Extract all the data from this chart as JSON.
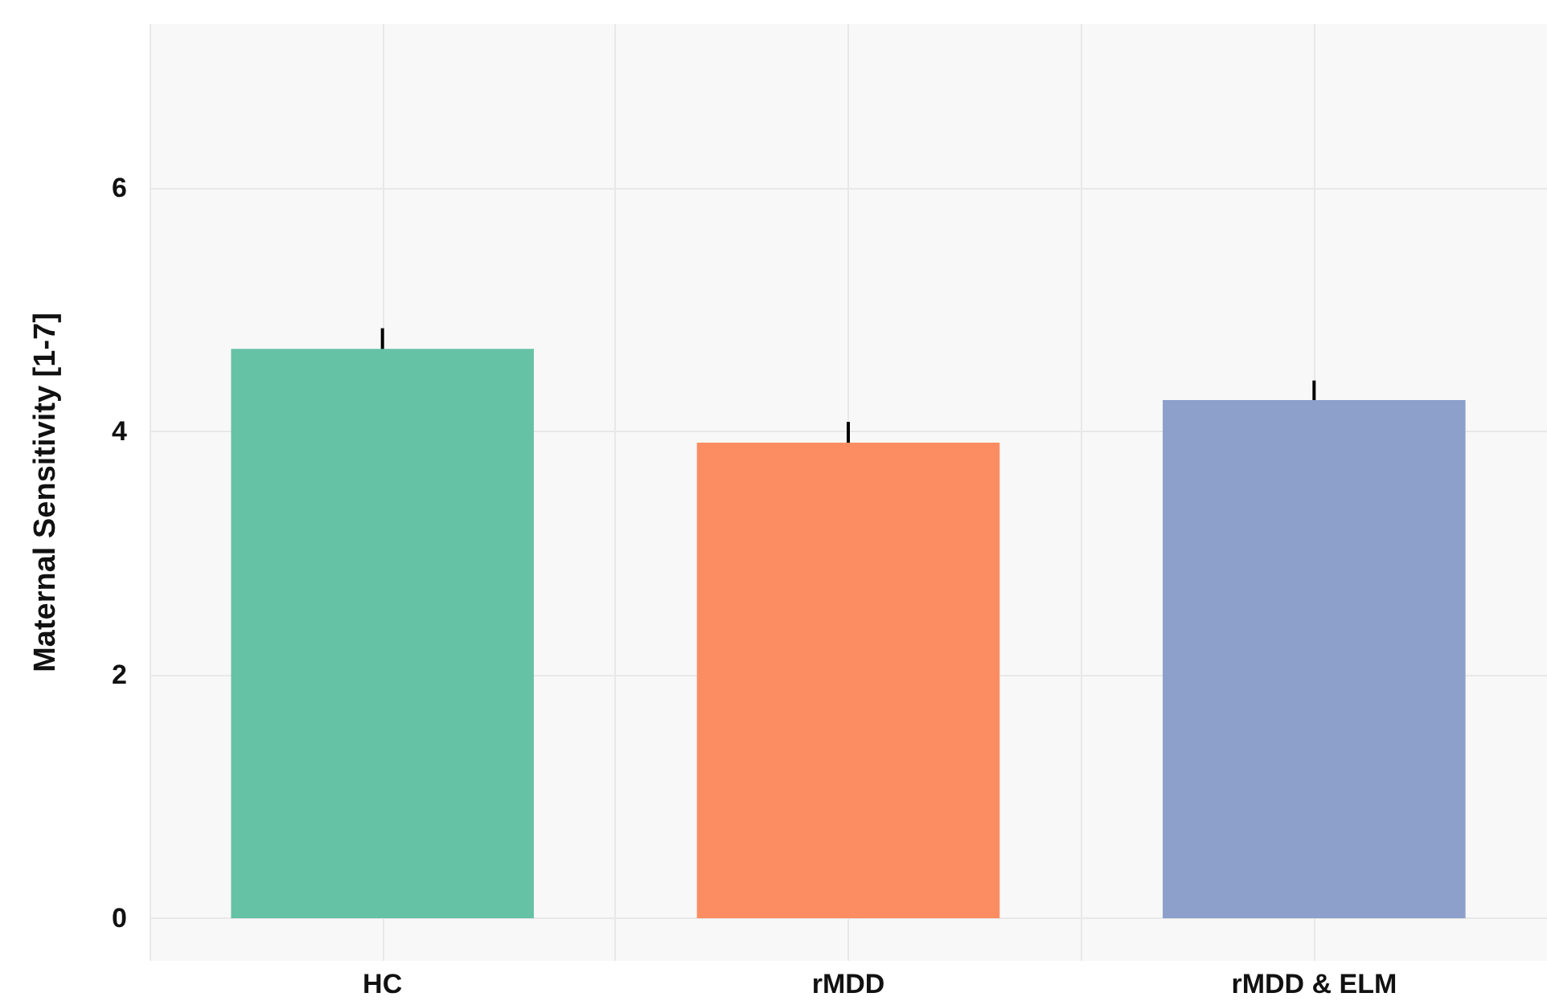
{
  "chart_data": {
    "type": "bar",
    "ylabel": "Maternal Sensitivity [1-7]",
    "categories": [
      "HC",
      "rMDD",
      "rMDD & ELM"
    ],
    "values": [
      4.68,
      3.91,
      4.26
    ],
    "colors": [
      "#66c2a5",
      "#fc8d62",
      "#8da0cb"
    ],
    "errors": [
      0.17,
      0.17,
      0.16
    ],
    "ylim": [
      -0.35,
      7.35
    ],
    "yticks": [
      0,
      2,
      4,
      6
    ],
    "grid": true
  }
}
